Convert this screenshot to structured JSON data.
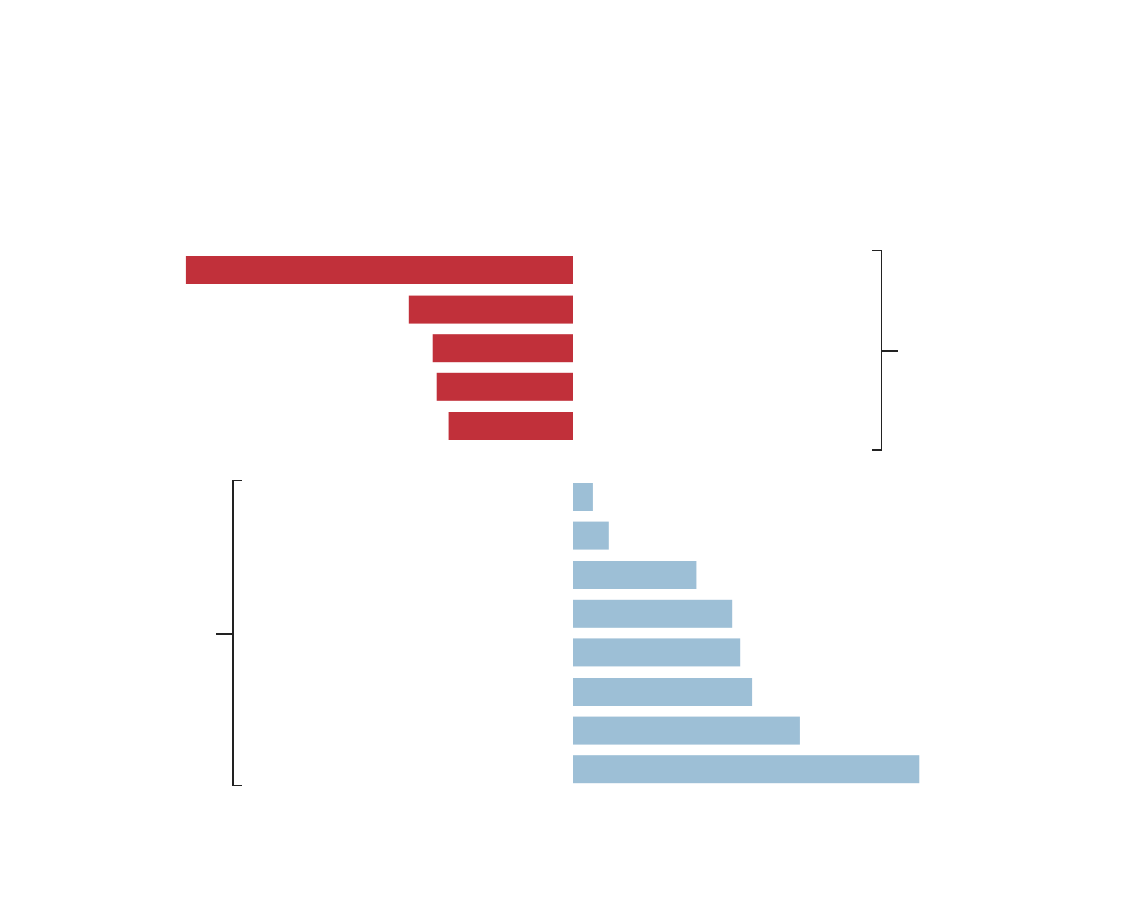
{
  "chart_data": {
    "type": "bar",
    "orientation": "horizontal",
    "baseline": 0,
    "xlim": [
      -0.99,
      0.89
    ],
    "grid": false,
    "legend": "none",
    "groups": [
      {
        "color": "#c1303a",
        "values": [
          -0.97,
          -0.41,
          -0.35,
          -0.34,
          -0.31
        ]
      },
      {
        "color": "#9dbfd6",
        "values": [
          0.05,
          0.09,
          0.31,
          0.4,
          0.42,
          0.45,
          0.57,
          0.87
        ]
      }
    ]
  }
}
